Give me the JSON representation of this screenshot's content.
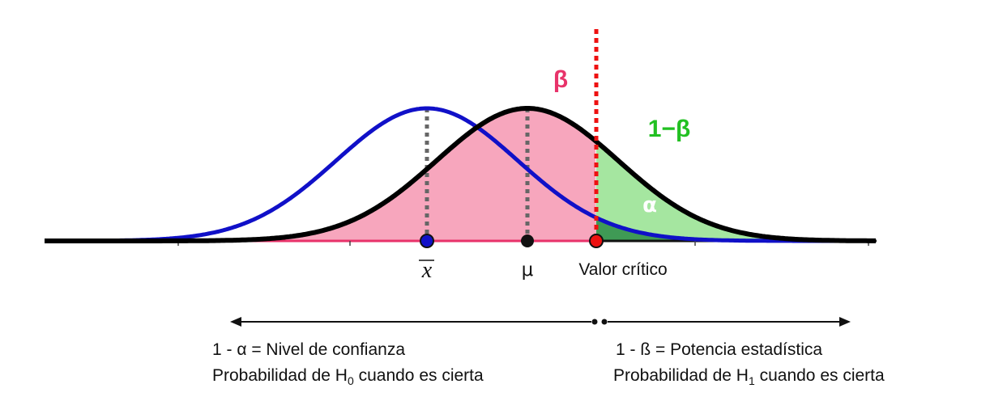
{
  "labels": {
    "beta": "β",
    "one_minus_beta": "1−β",
    "alpha": "α",
    "xbar_letter": "x",
    "mu": "μ",
    "critical_value": "Valor crítico"
  },
  "captions": {
    "left_line1": "1 - α = Nivel de confianza",
    "left_line2_a": "Probabilidad de H",
    "left_line2_sub": "0",
    "left_line2_b": " cuando es cierta",
    "right_line1": "1 - ß = Potencia estadística",
    "right_line2_a": "Probabilidad de H",
    "right_line2_sub": "1",
    "right_line2_b": " cuando es cierta"
  },
  "colors": {
    "null_curve": "#1010c8",
    "alt_curve": "#000000",
    "beta_fill": "#f7a6bd",
    "power_fill": "#a5e6a0",
    "alpha_fill": "#3f9a55",
    "critical_line": "#ee1111",
    "beta_label": "#e8336a",
    "power_label": "#22c022",
    "alpha_label": "#ffffff",
    "mean_lines": "#666666"
  },
  "icons": [
    "left-arrow-icon",
    "right-arrow-icon"
  ]
}
